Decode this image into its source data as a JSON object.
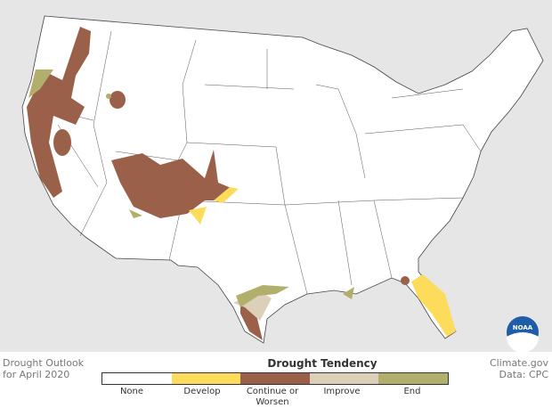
{
  "title_line1": "Drought Outlook",
  "title_line2": "for April 2020",
  "credit_line1": "Climate.gov",
  "credit_line2": "Data: CPC",
  "legend": {
    "title": "Drought Tendency",
    "items": [
      {
        "label": "None",
        "color": "#ffffff"
      },
      {
        "label": "Develop",
        "color": "#fddc5c"
      },
      {
        "label": "Continue or Worsen",
        "color": "#9b6049"
      },
      {
        "label": "Improve",
        "color": "#ddd0b9"
      },
      {
        "label": "End",
        "color": "#b2ae6c"
      }
    ]
  },
  "logo_text": "NOAA"
}
